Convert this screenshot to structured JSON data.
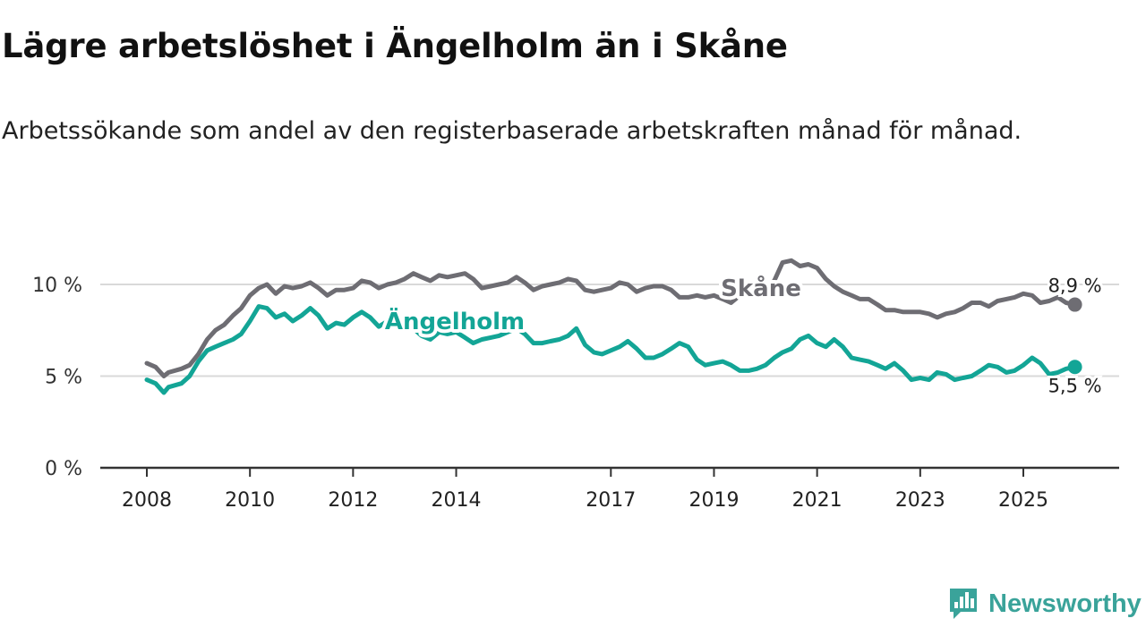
{
  "title": "Lägre arbetslöshet i Ängelholm än i Skåne",
  "subtitle": "Arbetssökande som andel av den registerbaserade arbetskraften månad för månad.",
  "brand": "Newsworthy",
  "colors": {
    "skane": "#6e6d73",
    "angelholm": "#13a596",
    "grid": "#d9d9d9",
    "axis": "#333333"
  },
  "chart_data": {
    "type": "line",
    "title": "Lägre arbetslöshet i Ängelholm än i Skåne",
    "xlabel": "",
    "ylabel": "",
    "xlim": [
      2007.6,
      2027.0
    ],
    "ylim": [
      0,
      12
    ],
    "x_ticks": [
      2008,
      2010,
      2012,
      2014,
      2017,
      2019,
      2021,
      2023,
      2025
    ],
    "y_ticks": [
      {
        "value": 0,
        "label": "0 %"
      },
      {
        "value": 5,
        "label": "5 %"
      },
      {
        "value": 10,
        "label": "10 %"
      }
    ],
    "series": [
      {
        "name": "Skåne",
        "color": "#6e6d73",
        "end_label": "8,9 %",
        "points": [
          [
            2008.0,
            5.7
          ],
          [
            2008.17,
            5.5
          ],
          [
            2008.33,
            5.0
          ],
          [
            2008.42,
            5.2
          ],
          [
            2008.67,
            5.4
          ],
          [
            2008.83,
            5.6
          ],
          [
            2009.0,
            6.2
          ],
          [
            2009.17,
            7.0
          ],
          [
            2009.33,
            7.5
          ],
          [
            2009.5,
            7.8
          ],
          [
            2009.67,
            8.3
          ],
          [
            2009.83,
            8.7
          ],
          [
            2010.0,
            9.4
          ],
          [
            2010.17,
            9.8
          ],
          [
            2010.33,
            10.0
          ],
          [
            2010.5,
            9.5
          ],
          [
            2010.67,
            9.9
          ],
          [
            2010.83,
            9.8
          ],
          [
            2011.0,
            9.9
          ],
          [
            2011.17,
            10.1
          ],
          [
            2011.33,
            9.8
          ],
          [
            2011.5,
            9.4
          ],
          [
            2011.67,
            9.7
          ],
          [
            2011.83,
            9.7
          ],
          [
            2012.0,
            9.8
          ],
          [
            2012.17,
            10.2
          ],
          [
            2012.33,
            10.1
          ],
          [
            2012.5,
            9.8
          ],
          [
            2012.67,
            10.0
          ],
          [
            2012.83,
            10.1
          ],
          [
            2013.0,
            10.3
          ],
          [
            2013.17,
            10.6
          ],
          [
            2013.33,
            10.4
          ],
          [
            2013.5,
            10.2
          ],
          [
            2013.67,
            10.5
          ],
          [
            2013.83,
            10.4
          ],
          [
            2014.0,
            10.5
          ],
          [
            2014.17,
            10.6
          ],
          [
            2014.33,
            10.3
          ],
          [
            2014.5,
            9.8
          ],
          [
            2014.67,
            9.9
          ],
          [
            2014.83,
            10.0
          ],
          [
            2015.0,
            10.1
          ],
          [
            2015.17,
            10.4
          ],
          [
            2015.33,
            10.1
          ],
          [
            2015.5,
            9.7
          ],
          [
            2015.67,
            9.9
          ],
          [
            2015.83,
            10.0
          ],
          [
            2016.0,
            10.1
          ],
          [
            2016.17,
            10.3
          ],
          [
            2016.33,
            10.2
          ],
          [
            2016.5,
            9.7
          ],
          [
            2016.67,
            9.6
          ],
          [
            2016.83,
            9.7
          ],
          [
            2017.0,
            9.8
          ],
          [
            2017.17,
            10.1
          ],
          [
            2017.33,
            10.0
          ],
          [
            2017.5,
            9.6
          ],
          [
            2017.67,
            9.8
          ],
          [
            2017.83,
            9.9
          ],
          [
            2018.0,
            9.9
          ],
          [
            2018.17,
            9.7
          ],
          [
            2018.33,
            9.3
          ],
          [
            2018.5,
            9.3
          ],
          [
            2018.67,
            9.4
          ],
          [
            2018.83,
            9.3
          ],
          [
            2019.0,
            9.4
          ],
          [
            2019.17,
            9.2
          ],
          [
            2019.33,
            9.0
          ],
          [
            2019.5,
            9.4
          ],
          [
            2019.67,
            9.5
          ],
          [
            2019.83,
            9.6
          ],
          [
            2020.0,
            9.8
          ],
          [
            2020.17,
            10.2
          ],
          [
            2020.33,
            11.2
          ],
          [
            2020.5,
            11.3
          ],
          [
            2020.67,
            11.0
          ],
          [
            2020.83,
            11.1
          ],
          [
            2021.0,
            10.9
          ],
          [
            2021.17,
            10.3
          ],
          [
            2021.33,
            9.9
          ],
          [
            2021.5,
            9.6
          ],
          [
            2021.67,
            9.4
          ],
          [
            2021.83,
            9.2
          ],
          [
            2022.0,
            9.2
          ],
          [
            2022.17,
            8.9
          ],
          [
            2022.33,
            8.6
          ],
          [
            2022.5,
            8.6
          ],
          [
            2022.67,
            8.5
          ],
          [
            2022.83,
            8.5
          ],
          [
            2023.0,
            8.5
          ],
          [
            2023.17,
            8.4
          ],
          [
            2023.33,
            8.2
          ],
          [
            2023.5,
            8.4
          ],
          [
            2023.67,
            8.5
          ],
          [
            2023.83,
            8.7
          ],
          [
            2024.0,
            9.0
          ],
          [
            2024.17,
            9.0
          ],
          [
            2024.33,
            8.8
          ],
          [
            2024.5,
            9.1
          ],
          [
            2024.67,
            9.2
          ],
          [
            2024.83,
            9.3
          ],
          [
            2025.0,
            9.5
          ],
          [
            2025.17,
            9.4
          ],
          [
            2025.33,
            9.0
          ],
          [
            2025.5,
            9.1
          ],
          [
            2025.67,
            9.3
          ],
          [
            2025.83,
            9.0
          ],
          [
            2026.0,
            8.9
          ]
        ]
      },
      {
        "name": "Ängelholm",
        "color": "#13a596",
        "end_label": "5,5 %",
        "points": [
          [
            2008.0,
            4.8
          ],
          [
            2008.17,
            4.6
          ],
          [
            2008.33,
            4.1
          ],
          [
            2008.42,
            4.4
          ],
          [
            2008.67,
            4.6
          ],
          [
            2008.83,
            5.0
          ],
          [
            2009.0,
            5.8
          ],
          [
            2009.17,
            6.4
          ],
          [
            2009.33,
            6.6
          ],
          [
            2009.5,
            6.8
          ],
          [
            2009.67,
            7.0
          ],
          [
            2009.83,
            7.3
          ],
          [
            2010.0,
            8.0
          ],
          [
            2010.17,
            8.8
          ],
          [
            2010.33,
            8.7
          ],
          [
            2010.5,
            8.2
          ],
          [
            2010.67,
            8.4
          ],
          [
            2010.83,
            8.0
          ],
          [
            2011.0,
            8.3
          ],
          [
            2011.17,
            8.7
          ],
          [
            2011.33,
            8.3
          ],
          [
            2011.5,
            7.6
          ],
          [
            2011.67,
            7.9
          ],
          [
            2011.83,
            7.8
          ],
          [
            2012.0,
            8.2
          ],
          [
            2012.17,
            8.5
          ],
          [
            2012.33,
            8.2
          ],
          [
            2012.5,
            7.7
          ],
          [
            2012.67,
            8.0
          ],
          [
            2012.83,
            7.9
          ],
          [
            2013.0,
            7.8
          ],
          [
            2013.17,
            7.6
          ],
          [
            2013.33,
            7.2
          ],
          [
            2013.5,
            7.0
          ],
          [
            2013.67,
            7.4
          ],
          [
            2013.83,
            7.3
          ],
          [
            2014.0,
            7.4
          ],
          [
            2014.17,
            7.1
          ],
          [
            2014.33,
            6.8
          ],
          [
            2014.5,
            7.0
          ],
          [
            2014.67,
            7.1
          ],
          [
            2014.83,
            7.2
          ],
          [
            2015.0,
            7.4
          ],
          [
            2015.17,
            7.6
          ],
          [
            2015.33,
            7.3
          ],
          [
            2015.5,
            6.8
          ],
          [
            2015.67,
            6.8
          ],
          [
            2015.83,
            6.9
          ],
          [
            2016.0,
            7.0
          ],
          [
            2016.17,
            7.2
          ],
          [
            2016.33,
            7.6
          ],
          [
            2016.5,
            6.7
          ],
          [
            2016.67,
            6.3
          ],
          [
            2016.83,
            6.2
          ],
          [
            2017.0,
            6.4
          ],
          [
            2017.17,
            6.6
          ],
          [
            2017.33,
            6.9
          ],
          [
            2017.5,
            6.5
          ],
          [
            2017.67,
            6.0
          ],
          [
            2017.83,
            6.0
          ],
          [
            2018.0,
            6.2
          ],
          [
            2018.17,
            6.5
          ],
          [
            2018.33,
            6.8
          ],
          [
            2018.5,
            6.6
          ],
          [
            2018.67,
            5.9
          ],
          [
            2018.83,
            5.6
          ],
          [
            2019.0,
            5.7
          ],
          [
            2019.17,
            5.8
          ],
          [
            2019.33,
            5.6
          ],
          [
            2019.5,
            5.3
          ],
          [
            2019.67,
            5.3
          ],
          [
            2019.83,
            5.4
          ],
          [
            2020.0,
            5.6
          ],
          [
            2020.17,
            6.0
          ],
          [
            2020.33,
            6.3
          ],
          [
            2020.5,
            6.5
          ],
          [
            2020.67,
            7.0
          ],
          [
            2020.83,
            7.2
          ],
          [
            2021.0,
            6.8
          ],
          [
            2021.17,
            6.6
          ],
          [
            2021.33,
            7.0
          ],
          [
            2021.5,
            6.6
          ],
          [
            2021.67,
            6.0
          ],
          [
            2021.83,
            5.9
          ],
          [
            2022.0,
            5.8
          ],
          [
            2022.17,
            5.6
          ],
          [
            2022.33,
            5.4
          ],
          [
            2022.5,
            5.7
          ],
          [
            2022.67,
            5.3
          ],
          [
            2022.83,
            4.8
          ],
          [
            2023.0,
            4.9
          ],
          [
            2023.17,
            4.8
          ],
          [
            2023.33,
            5.2
          ],
          [
            2023.5,
            5.1
          ],
          [
            2023.67,
            4.8
          ],
          [
            2023.83,
            4.9
          ],
          [
            2024.0,
            5.0
          ],
          [
            2024.17,
            5.3
          ],
          [
            2024.33,
            5.6
          ],
          [
            2024.5,
            5.5
          ],
          [
            2024.67,
            5.2
          ],
          [
            2024.83,
            5.3
          ],
          [
            2025.0,
            5.6
          ],
          [
            2025.17,
            6.0
          ],
          [
            2025.33,
            5.7
          ],
          [
            2025.5,
            5.1
          ],
          [
            2025.67,
            5.2
          ],
          [
            2025.83,
            5.4
          ],
          [
            2026.0,
            5.5
          ]
        ]
      }
    ]
  }
}
